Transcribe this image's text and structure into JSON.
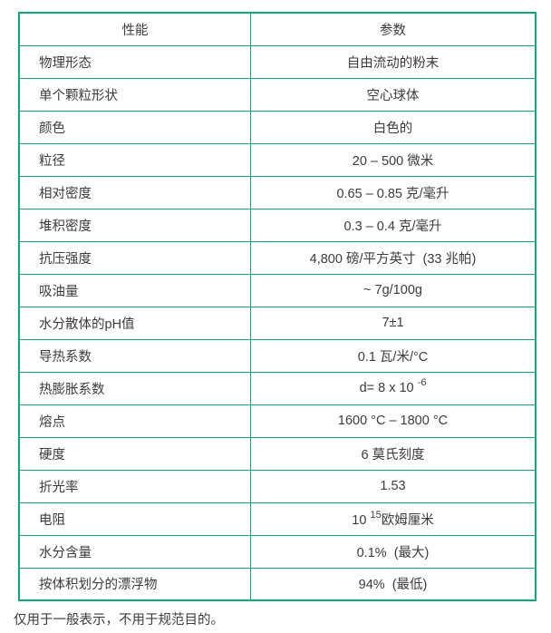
{
  "colors": {
    "table_border": "#0ea878",
    "text": "#3b3b3b",
    "background": "#ffffff"
  },
  "table": {
    "header": {
      "property": "性能",
      "parameter": "参数"
    },
    "rows": [
      {
        "property": "物理形态",
        "value": [
          {
            "text": "自由流动的粉末"
          }
        ]
      },
      {
        "property": "单个颗粒形状",
        "value": [
          {
            "text": "空心球体"
          }
        ]
      },
      {
        "property": "颜色",
        "value": [
          {
            "text": "白色的"
          }
        ]
      },
      {
        "property": "粒径",
        "value": [
          {
            "text": "20 – 500 微米"
          }
        ]
      },
      {
        "property": "相对密度",
        "value": [
          {
            "text": "0.65 – 0.85 克/毫升"
          }
        ]
      },
      {
        "property": "堆积密度",
        "value": [
          {
            "text": "0.3 – 0.4 克/毫升"
          }
        ]
      },
      {
        "property": "抗压强度",
        "value": [
          {
            "text": "4,800 磅/平方英寸  (33 兆帕)"
          }
        ]
      },
      {
        "property": "吸油量",
        "value": [
          {
            "text": "~ 7g/100g"
          }
        ]
      },
      {
        "property": "水分散体的pH值",
        "value": [
          {
            "text": "7±1"
          }
        ]
      },
      {
        "property": "导热系数",
        "value": [
          {
            "text": "0.1 瓦/米/°C"
          }
        ]
      },
      {
        "property": "热膨胀系数",
        "value": [
          {
            "text": "d= 8 x 10 "
          },
          {
            "sup": "-6"
          }
        ]
      },
      {
        "property": "熔点",
        "value": [
          {
            "text": "1600 °C – 1800 °C"
          }
        ]
      },
      {
        "property": "硬度",
        "value": [
          {
            "text": "6 莫氏刻度"
          }
        ]
      },
      {
        "property": "折光率",
        "value": [
          {
            "text": "1.53"
          }
        ]
      },
      {
        "property": "电阻",
        "value": [
          {
            "text": "10 "
          },
          {
            "sup": "15"
          },
          {
            "text": "欧姆厘米"
          }
        ]
      },
      {
        "property": "水分含量",
        "value": [
          {
            "text": "0.1%  (最大)"
          }
        ]
      },
      {
        "property": "按体积划分的漂浮物",
        "value": [
          {
            "text": "94%  (最低)"
          }
        ]
      }
    ]
  },
  "footer": {
    "note": "仅用于一般表示，不用于规范目的。"
  }
}
